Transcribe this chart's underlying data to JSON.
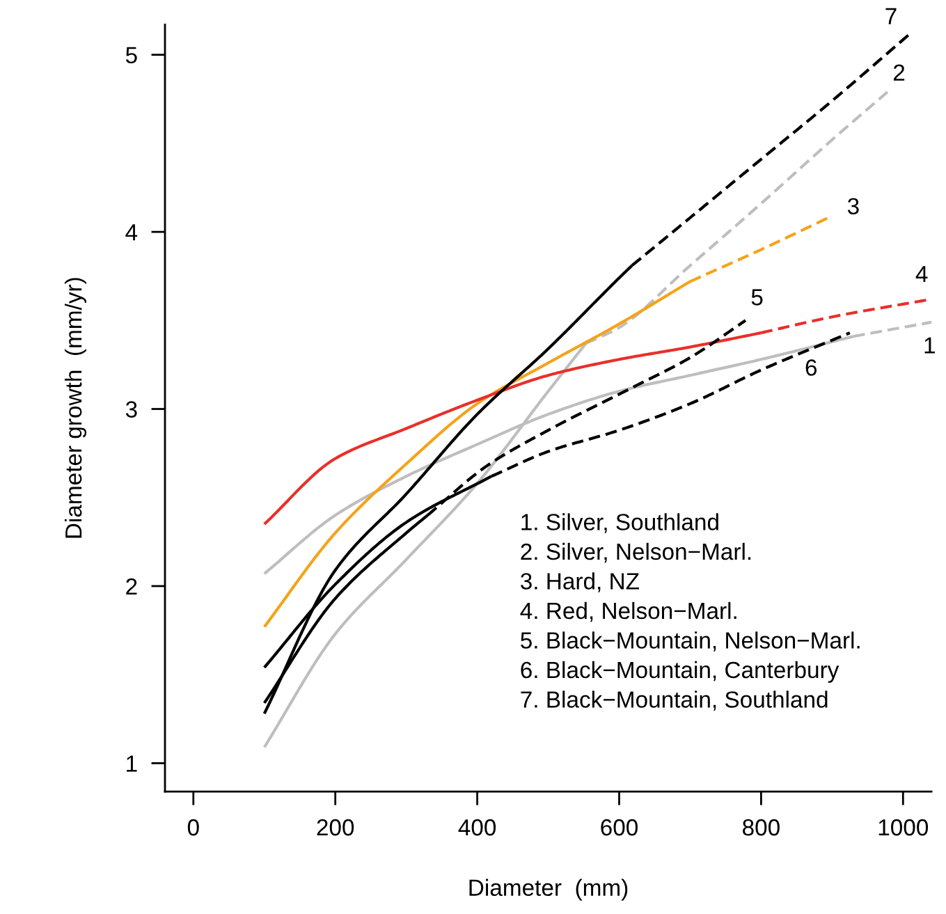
{
  "chart_data": {
    "type": "line",
    "xlabel": "Diameter  (mm)",
    "ylabel": "Diameter growth  (mm/yr)",
    "xlim": [
      -40,
      1040
    ],
    "ylim": [
      0.84,
      5.17
    ],
    "xticks": [
      0,
      200,
      400,
      600,
      800,
      1000
    ],
    "yticks": [
      1,
      2,
      3,
      4,
      5
    ],
    "grid": false,
    "legend": false,
    "marker": "none",
    "series": [
      {
        "color": "#bebebe",
        "line_style": "solid",
        "x": [
          100,
          200,
          300,
          400,
          500,
          600,
          700,
          800,
          930
        ],
        "values": [
          2.07,
          2.4,
          2.62,
          2.8,
          2.97,
          3.1,
          3.19,
          3.28,
          3.41
        ]
      },
      {
        "name": "1",
        "color": "#bebebe",
        "line_style": "dashed",
        "x": [
          930,
          1040
        ],
        "values": [
          3.41,
          3.49
        ]
      },
      {
        "color": "#bebebe",
        "line_style": "solid",
        "x": [
          100,
          200,
          300,
          400,
          500,
          553
        ],
        "values": [
          1.09,
          1.73,
          2.15,
          2.58,
          3.1,
          3.37
        ]
      },
      {
        "name": "2",
        "color": "#bebebe",
        "line_style": "dashed",
        "x": [
          553,
          600,
          700,
          800,
          900,
          978
        ],
        "values": [
          3.37,
          3.46,
          3.81,
          4.16,
          4.52,
          4.79
        ]
      },
      {
        "color": "#f5a31a",
        "line_style": "solid",
        "x": [
          100,
          200,
          300,
          400,
          500,
          600,
          700
        ],
        "values": [
          1.77,
          2.3,
          2.69,
          3.03,
          3.26,
          3.48,
          3.72
        ]
      },
      {
        "name": "3",
        "color": "#f5a31a",
        "line_style": "dashed",
        "x": [
          700,
          800,
          900
        ],
        "values": [
          3.72,
          3.9,
          4.09
        ]
      },
      {
        "color": "#e8302a",
        "line_style": "solid",
        "x": [
          100,
          200,
          300,
          400,
          500,
          600,
          700,
          800
        ],
        "values": [
          2.35,
          2.72,
          2.89,
          3.05,
          3.19,
          3.28,
          3.35,
          3.43
        ]
      },
      {
        "name": "4",
        "color": "#e8302a",
        "line_style": "dashed",
        "x": [
          800,
          900,
          1040
        ],
        "values": [
          3.43,
          3.52,
          3.62
        ]
      },
      {
        "color": "#000000",
        "line_style": "solid",
        "x": [
          100,
          200,
          300,
          330
        ],
        "values": [
          1.34,
          1.93,
          2.3,
          2.4
        ]
      },
      {
        "name": "5",
        "color": "#000000",
        "line_style": "dashed",
        "x": [
          330,
          414,
          500,
          618,
          700,
          778
        ],
        "values": [
          2.4,
          2.68,
          2.88,
          3.12,
          3.29,
          3.5
        ]
      },
      {
        "color": "#000000",
        "line_style": "solid",
        "x": [
          100,
          200,
          300,
          420
        ],
        "values": [
          1.54,
          2.01,
          2.36,
          2.62
        ]
      },
      {
        "name": "6",
        "color": "#000000",
        "line_style": "dashed",
        "x": [
          420,
          500,
          600,
          700,
          800,
          925
        ],
        "values": [
          2.62,
          2.76,
          2.88,
          3.03,
          3.22,
          3.43
        ]
      },
      {
        "color": "#000000",
        "line_style": "solid",
        "x": [
          100,
          200,
          300,
          400,
          500,
          600,
          618
        ],
        "values": [
          1.28,
          2.09,
          2.52,
          2.97,
          3.34,
          3.74,
          3.81
        ]
      },
      {
        "name": "7",
        "color": "#000000",
        "line_style": "dashed",
        "x": [
          618,
          700,
          800,
          900,
          1013
        ],
        "values": [
          3.81,
          4.08,
          4.41,
          4.74,
          5.13
        ]
      }
    ],
    "annotations": [
      "1. Silver, Southland",
      "2. Silver, Nelson−Marl.",
      "3. Hard, NZ",
      "4. Red, Nelson−Marl.",
      "5. Black−Mountain, Nelson−Marl.",
      "6. Black−Mountain, Canterbury",
      "7. Black−Mountain, Southland"
    ]
  }
}
